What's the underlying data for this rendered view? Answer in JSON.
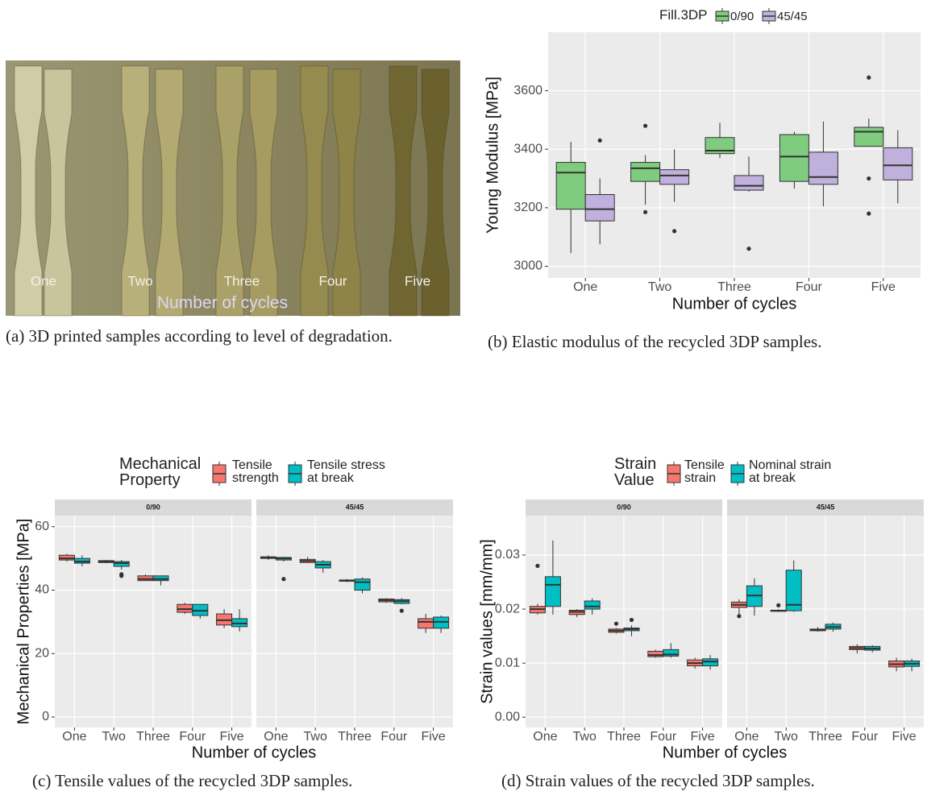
{
  "photo": {
    "labels": [
      "One",
      "Two",
      "Three",
      "Four",
      "Five"
    ],
    "axis_label": "Number of cycles"
  },
  "captions": [
    "(a) 3D printed samples according to level of degradation.",
    "(b) Elastic modulus of the recycled 3DP samples.",
    "(c) Tensile values of the recycled 3DP samples.",
    "(d) Strain values of the recycled 3DP samples."
  ],
  "chart_data": [
    {
      "type": "box",
      "x_label": "Number of cycles",
      "y_label": "Young Modulus [MPa]",
      "legend_title": "Fill.3DP",
      "categories": [
        "One",
        "Two",
        "Three",
        "Four",
        "Five"
      ],
      "ylim": [
        2960,
        3800
      ],
      "yticks": [
        3000,
        3200,
        3400,
        3600
      ],
      "grid": true,
      "series": [
        {
          "name": "0/90",
          "color": "#7fcc7f",
          "boxes": [
            {
              "low": 3045,
              "q1": 3195,
              "median": 3320,
              "q3": 3355,
              "high": 3425,
              "outliers": []
            },
            {
              "low": 3210,
              "q1": 3290,
              "median": 3335,
              "q3": 3355,
              "high": 3380,
              "outliers": [
                3480,
                3185
              ]
            },
            {
              "low": 3370,
              "q1": 3385,
              "median": 3395,
              "q3": 3440,
              "high": 3490,
              "outliers": []
            },
            {
              "low": 3265,
              "q1": 3290,
              "median": 3375,
              "q3": 3450,
              "high": 3460,
              "outliers": []
            },
            {
              "low": 3410,
              "q1": 3410,
              "median": 3460,
              "q3": 3475,
              "high": 3505,
              "outliers": [
                3645,
                3300,
                3180
              ]
            }
          ]
        },
        {
          "name": "45/45",
          "color": "#bfb0dc",
          "boxes": [
            {
              "low": 3075,
              "q1": 3155,
              "median": 3195,
              "q3": 3245,
              "high": 3300,
              "outliers": [
                3430
              ]
            },
            {
              "low": 3220,
              "q1": 3280,
              "median": 3310,
              "q3": 3330,
              "high": 3400,
              "outliers": [
                3120
              ]
            },
            {
              "low": 3255,
              "q1": 3260,
              "median": 3275,
              "q3": 3310,
              "high": 3375,
              "outliers": [
                3060
              ]
            },
            {
              "low": 3205,
              "q1": 3280,
              "median": 3305,
              "q3": 3390,
              "high": 3495,
              "outliers": []
            },
            {
              "low": 3215,
              "q1": 3295,
              "median": 3345,
              "q3": 3405,
              "high": 3465,
              "outliers": []
            }
          ]
        }
      ]
    },
    {
      "type": "box",
      "x_label": "Number of cycles",
      "y_label": "Mechanical Properties [MPa]",
      "legend_title": "Mechanical Property",
      "categories": [
        "One",
        "Two",
        "Three",
        "Four",
        "Five"
      ],
      "ylim": [
        -3.3,
        63.5
      ],
      "yticks": [
        0,
        20,
        40,
        60
      ],
      "grid": true,
      "series_names": [
        "Tensile strength",
        "Tensile stress at break"
      ],
      "colors": [
        "#f8766d",
        "#00bfc4"
      ],
      "facets": [
        {
          "name": "0/90",
          "series": [
            {
              "boxes": [
                {
                  "low": 49,
                  "q1": 49.5,
                  "median": 50,
                  "q3": 51,
                  "high": 51.5,
                  "outliers": []
                },
                {
                  "low": 48.5,
                  "q1": 48.7,
                  "median": 49,
                  "q3": 49.3,
                  "high": 49.5,
                  "outliers": []
                },
                {
                  "low": 43,
                  "q1": 43,
                  "median": 43.5,
                  "q3": 44.5,
                  "high": 45,
                  "outliers": []
                },
                {
                  "low": 32.5,
                  "q1": 33,
                  "median": 34,
                  "q3": 35.5,
                  "high": 36,
                  "outliers": []
                },
                {
                  "low": 28,
                  "q1": 29,
                  "median": 30.5,
                  "q3": 32.5,
                  "high": 34,
                  "outliers": []
                }
              ]
            },
            {
              "boxes": [
                {
                  "low": 47.5,
                  "q1": 48.5,
                  "median": 49,
                  "q3": 50,
                  "high": 51,
                  "outliers": []
                },
                {
                  "low": 46.5,
                  "q1": 47.5,
                  "median": 48.5,
                  "q3": 49,
                  "high": 49.5,
                  "outliers": [
                    45,
                    44.5
                  ]
                },
                {
                  "low": 41.5,
                  "q1": 43,
                  "median": 43.5,
                  "q3": 44.5,
                  "high": 44.5,
                  "outliers": []
                },
                {
                  "low": 31,
                  "q1": 32,
                  "median": 33.5,
                  "q3": 35.5,
                  "high": 35.5,
                  "outliers": []
                },
                {
                  "low": 27,
                  "q1": 28.5,
                  "median": 29.5,
                  "q3": 31,
                  "high": 34,
                  "outliers": []
                }
              ]
            }
          ]
        },
        {
          "name": "45/45",
          "series": [
            {
              "boxes": [
                {
                  "low": 49.5,
                  "q1": 50,
                  "median": 50.2,
                  "q3": 50.5,
                  "high": 51,
                  "outliers": []
                },
                {
                  "low": 48.5,
                  "q1": 48.7,
                  "median": 49.2,
                  "q3": 49.7,
                  "high": 50.5,
                  "outliers": []
                },
                {
                  "low": 42.5,
                  "q1": 42.8,
                  "median": 43,
                  "q3": 43.2,
                  "high": 43.5,
                  "outliers": []
                },
                {
                  "low": 36,
                  "q1": 36.3,
                  "median": 36.8,
                  "q3": 37.2,
                  "high": 37.5,
                  "outliers": []
                },
                {
                  "low": 26.5,
                  "q1": 28,
                  "median": 30,
                  "q3": 31,
                  "high": 32.5,
                  "outliers": []
                }
              ]
            },
            {
              "boxes": [
                {
                  "low": 49,
                  "q1": 49.5,
                  "median": 50,
                  "q3": 50.3,
                  "high": 50.5,
                  "outliers": [
                    43.5
                  ]
                },
                {
                  "low": 45.5,
                  "q1": 47,
                  "median": 48,
                  "q3": 49,
                  "high": 49.5,
                  "outliers": []
                },
                {
                  "low": 39,
                  "q1": 40,
                  "median": 42.5,
                  "q3": 43.5,
                  "high": 44,
                  "outliers": []
                },
                {
                  "low": 35.5,
                  "q1": 35.8,
                  "median": 36.5,
                  "q3": 37,
                  "high": 37.5,
                  "outliers": [
                    33.5
                  ]
                },
                {
                  "low": 26.5,
                  "q1": 28,
                  "median": 30,
                  "q3": 31.5,
                  "high": 32,
                  "outliers": []
                }
              ]
            }
          ]
        }
      ]
    },
    {
      "type": "box",
      "x_label": "Number of cycles",
      "y_label": "Strain values [mm/mm]",
      "legend_title": "Strain Value",
      "categories": [
        "One",
        "Two",
        "Three",
        "Four",
        "Five"
      ],
      "ylim": [
        -0.0019,
        0.0373
      ],
      "yticks": [
        {
          "value": 0,
          "label": "0.00"
        },
        0.01,
        0.02,
        0.03
      ],
      "grid": true,
      "series_names": [
        "Tensile strain",
        "Nominal strain at break"
      ],
      "colors": [
        "#f8766d",
        "#00bfc4"
      ],
      "facets": [
        {
          "name": "0/90",
          "series": [
            {
              "boxes": [
                {
                  "low": 0.019,
                  "q1": 0.0193,
                  "median": 0.02,
                  "q3": 0.0205,
                  "high": 0.021,
                  "outliers": [
                    0.028
                  ]
                },
                {
                  "low": 0.0185,
                  "q1": 0.019,
                  "median": 0.0195,
                  "q3": 0.0198,
                  "high": 0.02,
                  "outliers": []
                },
                {
                  "low": 0.0155,
                  "q1": 0.0157,
                  "median": 0.016,
                  "q3": 0.0163,
                  "high": 0.0165,
                  "outliers": [
                    0.0173
                  ]
                },
                {
                  "low": 0.011,
                  "q1": 0.0112,
                  "median": 0.0115,
                  "q3": 0.0122,
                  "high": 0.0125,
                  "outliers": []
                },
                {
                  "low": 0.009,
                  "q1": 0.0095,
                  "median": 0.01,
                  "q3": 0.0106,
                  "high": 0.011,
                  "outliers": []
                }
              ]
            },
            {
              "boxes": [
                {
                  "low": 0.019,
                  "q1": 0.0205,
                  "median": 0.0245,
                  "q3": 0.026,
                  "high": 0.0327,
                  "outliers": []
                },
                {
                  "low": 0.019,
                  "q1": 0.02,
                  "median": 0.0205,
                  "q3": 0.0215,
                  "high": 0.022,
                  "outliers": []
                },
                {
                  "low": 0.015,
                  "q1": 0.016,
                  "median": 0.0163,
                  "q3": 0.0165,
                  "high": 0.017,
                  "outliers": [
                    0.018
                  ]
                },
                {
                  "low": 0.011,
                  "q1": 0.0113,
                  "median": 0.0116,
                  "q3": 0.0125,
                  "high": 0.0137,
                  "outliers": []
                },
                {
                  "low": 0.0088,
                  "q1": 0.0095,
                  "median": 0.0103,
                  "q3": 0.0108,
                  "high": 0.0115,
                  "outliers": []
                }
              ]
            }
          ]
        },
        {
          "name": "45/45",
          "series": [
            {
              "boxes": [
                {
                  "low": 0.019,
                  "q1": 0.0203,
                  "median": 0.0208,
                  "q3": 0.0213,
                  "high": 0.0218,
                  "outliers": [
                    0.0187
                  ]
                },
                {
                  "low": 0.0195,
                  "q1": 0.0196,
                  "median": 0.0197,
                  "q3": 0.0198,
                  "high": 0.02,
                  "outliers": [
                    0.0207
                  ]
                },
                {
                  "low": 0.0158,
                  "q1": 0.016,
                  "median": 0.0162,
                  "q3": 0.0163,
                  "high": 0.0167,
                  "outliers": []
                },
                {
                  "low": 0.0118,
                  "q1": 0.0125,
                  "median": 0.0128,
                  "q3": 0.0131,
                  "high": 0.0135,
                  "outliers": []
                },
                {
                  "low": 0.0085,
                  "q1": 0.0093,
                  "median": 0.0098,
                  "q3": 0.0104,
                  "high": 0.011,
                  "outliers": []
                }
              ]
            },
            {
              "boxes": [
                {
                  "low": 0.0188,
                  "q1": 0.0205,
                  "median": 0.0225,
                  "q3": 0.0243,
                  "high": 0.0257,
                  "outliers": []
                },
                {
                  "low": 0.0195,
                  "q1": 0.0197,
                  "median": 0.0208,
                  "q3": 0.0272,
                  "high": 0.029,
                  "outliers": []
                },
                {
                  "low": 0.0158,
                  "q1": 0.0163,
                  "median": 0.0167,
                  "q3": 0.0172,
                  "high": 0.0175,
                  "outliers": []
                },
                {
                  "low": 0.012,
                  "q1": 0.0124,
                  "median": 0.0127,
                  "q3": 0.0131,
                  "high": 0.0133,
                  "outliers": []
                },
                {
                  "low": 0.0085,
                  "q1": 0.0094,
                  "median": 0.0099,
                  "q3": 0.0104,
                  "high": 0.0108,
                  "outliers": []
                }
              ]
            }
          ]
        }
      ]
    }
  ]
}
